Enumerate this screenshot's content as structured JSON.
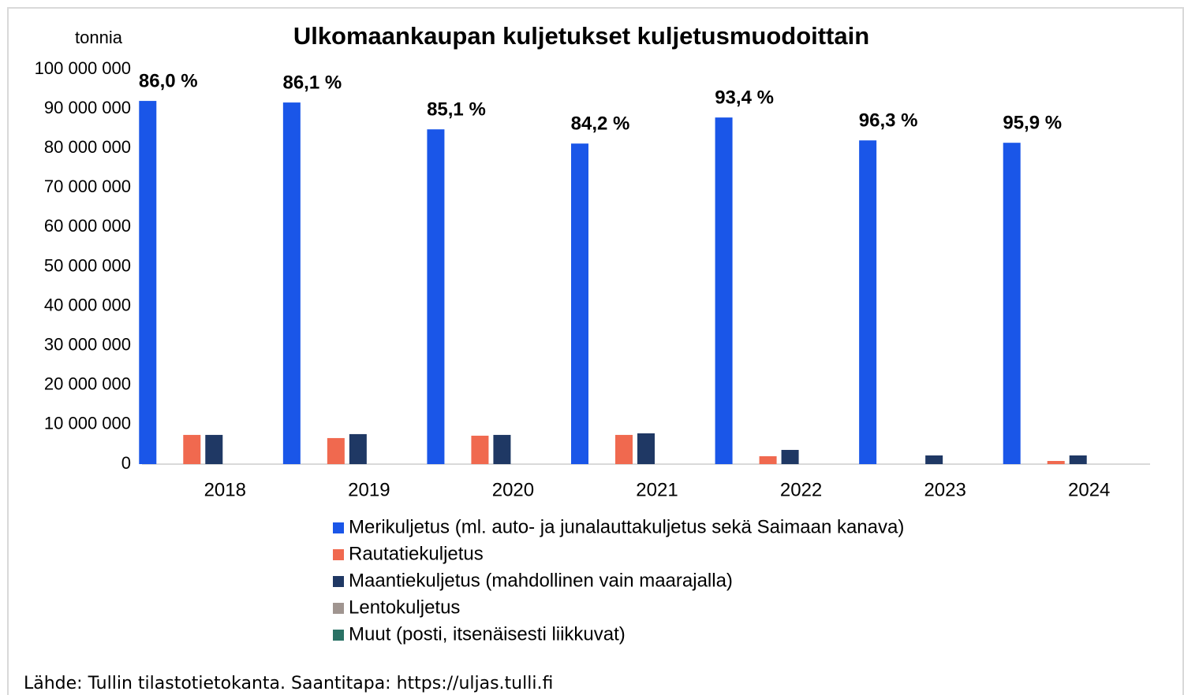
{
  "chart_data": {
    "type": "bar",
    "title": "Ulkomaankaupan kuljetukset kuljetusmuodoittain",
    "y_label": "tonnia",
    "source": "Lähde: Tullin tilastotietokanta. Saantitapa: https://uljas.tulli.fi",
    "categories": [
      "2018",
      "2019",
      "2020",
      "2021",
      "2022",
      "2023",
      "2024"
    ],
    "series": [
      {
        "name": "Merikuljetus (ml. auto- ja junalauttakuljetus sekä Saimaan kanava)",
        "color": "#1a56e8",
        "values": [
          92000000,
          91600000,
          84800000,
          81200000,
          87800000,
          82000000,
          81400000
        ]
      },
      {
        "name": "Rautatiekuljetus",
        "color": "#f0694f",
        "values": [
          7400000,
          6600000,
          7200000,
          7400000,
          2000000,
          0,
          800000
        ]
      },
      {
        "name": "Maantiekuljetus (mahdollinen vain maarajalla)",
        "color": "#1f3864",
        "values": [
          7400000,
          7600000,
          7400000,
          7800000,
          3600000,
          2200000,
          2200000
        ]
      },
      {
        "name": "Lentokuljetus",
        "color": "#a09590",
        "values": [
          0,
          0,
          0,
          0,
          0,
          0,
          0
        ]
      },
      {
        "name": "Muut (posti, itsenäisesti liikkuvat)",
        "color": "#2a7265",
        "values": [
          0,
          0,
          0,
          0,
          0,
          0,
          0
        ]
      }
    ],
    "annotations": [
      "86,0 %",
      "86,1 %",
      "85,1 %",
      "84,2 %",
      "93,4 %",
      "96,3 %",
      "95,9 %"
    ],
    "ylim": [
      0,
      100000000
    ],
    "yticks": [
      0,
      {
        "value": 10000000,
        "label": "10 000 000"
      },
      {
        "value": 20000000,
        "label": "20 000 000"
      },
      {
        "value": 30000000,
        "label": "30 000 000"
      },
      {
        "value": 40000000,
        "label": "40 000 000"
      },
      {
        "value": 50000000,
        "label": "50 000 000"
      },
      {
        "value": 60000000,
        "label": "60 000 000"
      },
      {
        "value": 70000000,
        "label": "70 000 000"
      },
      {
        "value": 80000000,
        "label": "80 000 000"
      },
      {
        "value": 90000000,
        "label": "90 000 000"
      },
      {
        "value": 100000000,
        "label": "100 000 000"
      }
    ],
    "grid": false,
    "legend": "bottom"
  }
}
